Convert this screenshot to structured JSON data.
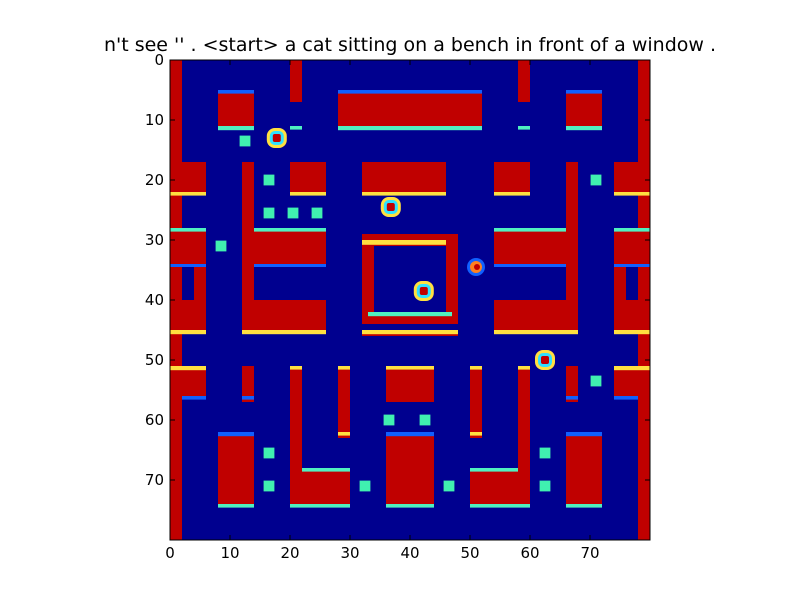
{
  "title": "n't see '' . <start> a cat sitting on a bench in front of a window .",
  "axes": {
    "x_range": [
      0,
      80
    ],
    "y_range": [
      0,
      80
    ],
    "x_ticks": [
      "0",
      "10",
      "20",
      "30",
      "40",
      "50",
      "60",
      "70"
    ],
    "y_ticks": [
      "0",
      "10",
      "20",
      "30",
      "40",
      "50",
      "60",
      "70"
    ],
    "y_inverted": true,
    "grid": false
  },
  "colors": {
    "background": "#00008f",
    "wall": "#c00000",
    "edge_light": "#4ff0c0",
    "edge_yellow": "#ffe040",
    "edge_blue": "#1060ff",
    "pellet": "#40f0b0",
    "sprite_cyan": "#30e0ff",
    "sprite_orange": "#ff8020"
  },
  "colormap": "jet",
  "sprites": [
    {
      "name": "ghost",
      "x": 17.8,
      "y": 13
    },
    {
      "name": "ghost",
      "x": 36.8,
      "y": 24.5
    },
    {
      "name": "ghost",
      "x": 42.3,
      "y": 38.5
    },
    {
      "name": "pacman",
      "x": 51,
      "y": 34.5
    },
    {
      "name": "ghost",
      "x": 62.5,
      "y": 50
    }
  ]
}
